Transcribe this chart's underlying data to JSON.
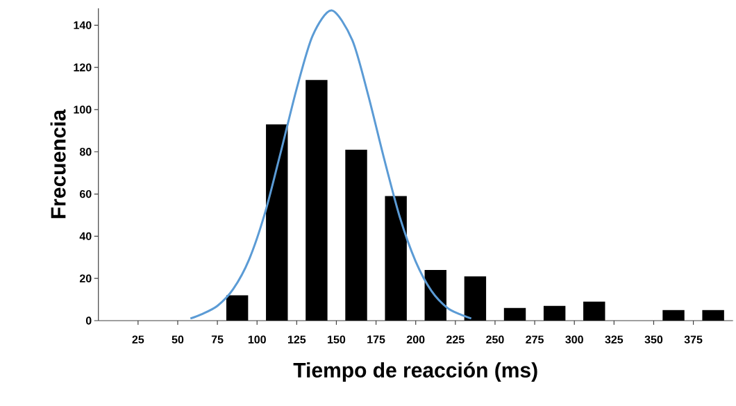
{
  "chart_data": {
    "type": "histogram",
    "xlabel": "Tiempo de reacción (ms)",
    "ylabel": "Frecuencia",
    "bins": [
      75,
      100,
      125,
      150,
      175,
      200,
      225,
      250,
      275,
      300,
      325,
      350,
      375,
      400
    ],
    "values": [
      12,
      93,
      114,
      81,
      59,
      24,
      21,
      6,
      7,
      9,
      0,
      5,
      5
    ],
    "color": "#000000",
    "series": [
      {
        "type": "line",
        "color": "#5b9bd5",
        "x": [
          58,
          65,
          75,
          85,
          95,
          105,
          115,
          125,
          135,
          147,
          160,
          170,
          180,
          190,
          200,
          210,
          220,
          228,
          235
        ],
        "values": [
          1,
          3,
          7,
          15,
          29,
          51,
          80,
          110,
          135,
          147,
          133,
          107,
          77,
          49,
          28,
          14,
          6,
          3,
          1
        ]
      }
    ],
    "xlim": [
      0,
      400
    ],
    "ylim": [
      0,
      148
    ],
    "xticks": [
      25,
      50,
      75,
      100,
      125,
      150,
      175,
      200,
      225,
      250,
      275,
      300,
      325,
      350,
      375
    ],
    "yticks": [
      0,
      20,
      40,
      60,
      80,
      100,
      120,
      140
    ]
  }
}
